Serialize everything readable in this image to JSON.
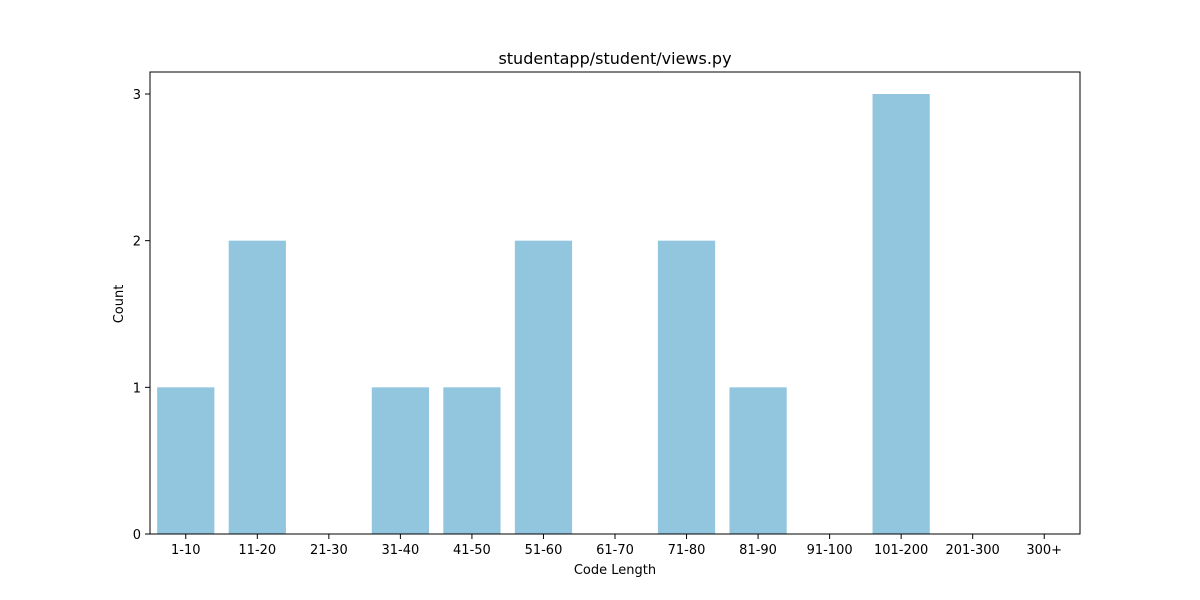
{
  "chart_data": {
    "type": "bar",
    "title": "studentapp/student/views.py",
    "xlabel": "Code Length",
    "ylabel": "Count",
    "categories": [
      "1-10",
      "11-20",
      "21-30",
      "31-40",
      "41-50",
      "51-60",
      "61-70",
      "71-80",
      "81-90",
      "91-100",
      "101-200",
      "201-300",
      "300+"
    ],
    "values": [
      1,
      2,
      0,
      1,
      1,
      2,
      0,
      2,
      1,
      0,
      3,
      0,
      0
    ],
    "yticks": [
      "0",
      "1",
      "2",
      "3"
    ],
    "ylim": [
      0,
      3.15
    ],
    "grid": false,
    "legend": "none",
    "bar_color": "#92c5de"
  }
}
